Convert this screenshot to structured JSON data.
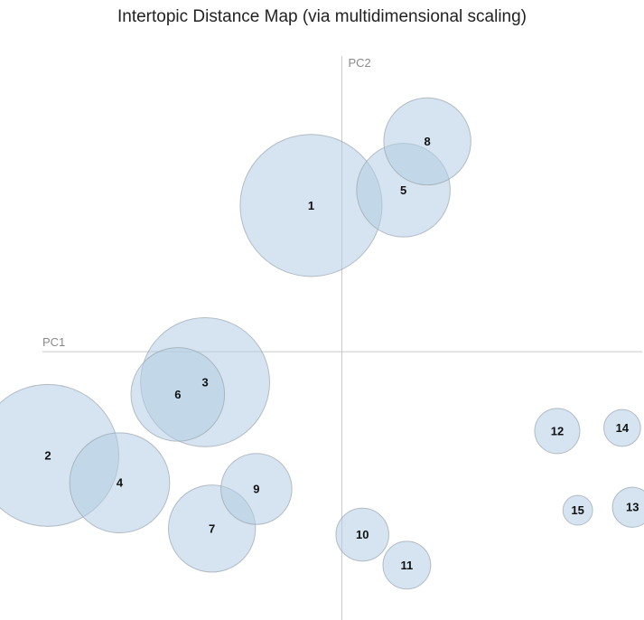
{
  "chart_data": {
    "type": "scatter",
    "title": "Intertopic Distance Map (via multidimensional scaling)",
    "xlabel": "PC1",
    "ylabel": "PC2",
    "xlim": [
      -10,
      10
    ],
    "ylim": [
      -8.8,
      9.7
    ],
    "grid": false,
    "legend": "none",
    "marker_style": "circle, size proportional to topic size",
    "colors": {
      "bubble_fill": "#b3cde3",
      "bubble_stroke": "#9aa5ae",
      "axis": "#c9c9c9"
    },
    "points": [
      {
        "label": "1",
        "x": -0.9,
        "y": 4.8,
        "size": 2.2
      },
      {
        "label": "2",
        "x": -8.6,
        "y": -3.4,
        "size": 2.2
      },
      {
        "label": "3",
        "x": -4.0,
        "y": -1.0,
        "size": 2.0
      },
      {
        "label": "4",
        "x": -6.5,
        "y": -4.3,
        "size": 1.55
      },
      {
        "label": "5",
        "x": 1.8,
        "y": 5.3,
        "size": 1.45
      },
      {
        "label": "6",
        "x": -4.8,
        "y": -1.4,
        "size": 1.45
      },
      {
        "label": "7",
        "x": -3.8,
        "y": -5.8,
        "size": 1.35
      },
      {
        "label": "8",
        "x": 2.5,
        "y": 6.9,
        "size": 1.35
      },
      {
        "label": "9",
        "x": -2.5,
        "y": -4.5,
        "size": 1.1
      },
      {
        "label": "10",
        "x": 0.6,
        "y": -6.0,
        "size": 0.82
      },
      {
        "label": "11",
        "x": 1.9,
        "y": -7.0,
        "size": 0.74
      },
      {
        "label": "12",
        "x": 6.3,
        "y": -2.6,
        "size": 0.7
      },
      {
        "label": "13",
        "x": 8.5,
        "y": -5.1,
        "size": 0.62
      },
      {
        "label": "14",
        "x": 8.2,
        "y": -2.5,
        "size": 0.57
      },
      {
        "label": "15",
        "x": 6.9,
        "y": -5.2,
        "size": 0.46
      }
    ]
  }
}
